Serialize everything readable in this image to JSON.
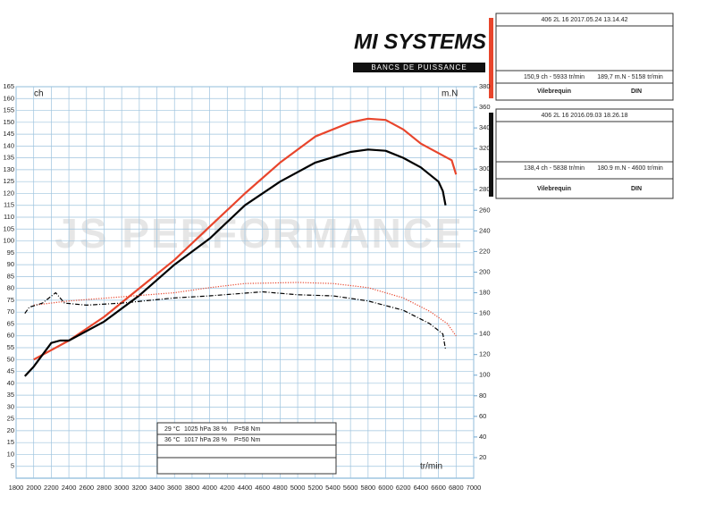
{
  "chart_data": {
    "type": "line",
    "xlim": [
      1800,
      7000
    ],
    "xticks": [
      1800,
      2000,
      2200,
      2400,
      2600,
      2800,
      3000,
      3200,
      3400,
      3600,
      3800,
      4000,
      4200,
      4400,
      4600,
      4800,
      5000,
      5200,
      5400,
      5600,
      5800,
      6000,
      6200,
      6400,
      6600,
      6800,
      7000
    ],
    "ylim": [
      0,
      165
    ],
    "yticks": [
      5,
      10,
      15,
      20,
      25,
      30,
      35,
      40,
      45,
      50,
      55,
      60,
      65,
      70,
      75,
      80,
      85,
      90,
      95,
      100,
      105,
      110,
      115,
      120,
      125,
      130,
      135,
      140,
      145,
      150,
      155,
      160,
      165
    ],
    "y2lim": [
      0,
      380
    ],
    "y2ticks": [
      20,
      40,
      60,
      80,
      100,
      120,
      140,
      160,
      180,
      200,
      220,
      240,
      260,
      280,
      300,
      320,
      340,
      360,
      380
    ],
    "ylabel": "ch",
    "y2label": "m.N",
    "xlabel": "tr/min",
    "grid": true,
    "series": [
      {
        "color": "#e8452c",
        "style": "solid",
        "x": [
          2000,
          2400,
          2800,
          3200,
          3600,
          4000,
          4400,
          4800,
          5200,
          5600,
          5800,
          6000,
          6200,
          6400,
          6600,
          6750,
          6800
        ],
        "values": [
          50,
          58,
          68,
          80,
          92,
          106,
          120,
          133,
          144,
          150,
          151.5,
          151,
          147,
          141,
          137,
          134,
          128
        ]
      },
      {
        "color": "#000000",
        "style": "solid",
        "x": [
          1900,
          2000,
          2200,
          2300,
          2400,
          2800,
          3200,
          3600,
          4000,
          4400,
          4800,
          5200,
          5600,
          5800,
          6000,
          6200,
          6400,
          6600,
          6650,
          6680
        ],
        "values": [
          43,
          47,
          57,
          58,
          58,
          66,
          77,
          90,
          101,
          115,
          125,
          133,
          137.5,
          138.5,
          138,
          135,
          131,
          125,
          121,
          115
        ]
      },
      {
        "color": "#e8452c",
        "style": "dotted",
        "axis": "y2",
        "x": [
          2000,
          2400,
          3000,
          3600,
          4000,
          4400,
          5000,
          5400,
          5800,
          6200,
          6500,
          6700,
          6800
        ],
        "values": [
          168,
          172,
          176,
          180,
          185,
          189,
          190,
          189,
          185,
          175,
          162,
          150,
          138
        ]
      },
      {
        "color": "#000000",
        "style": "dashed",
        "axis": "y2",
        "x": [
          1900,
          1950,
          2100,
          2250,
          2350,
          2600,
          3000,
          3600,
          4000,
          4600,
          5000,
          5400,
          5800,
          6200,
          6500,
          6650,
          6680
        ],
        "values": [
          160,
          166,
          170,
          180,
          170,
          168,
          170,
          175,
          177,
          180.9,
          178,
          177,
          172,
          163,
          150,
          140,
          125
        ]
      }
    ]
  },
  "logo": {
    "title": "MI SYSTEMS",
    "subtitle": "BANCS DE PUISSANCE"
  },
  "watermark": "JS PERFORMANCE",
  "panels": [
    {
      "header": "406 2L 16    2017.05.24 13.14.42",
      "power": "150,9 ch - 5933 tr/min",
      "torque": "189,7 m.N - 5158 tr/min",
      "shaft": "Vilebrequin",
      "norm": "DIN"
    },
    {
      "header": "406 2L 16    2016.09.03 18.26.18",
      "power": "138,4 ch - 5838 tr/min",
      "torque": "180.9 m.N - 4600 tr/min",
      "shaft": "Vilebrequin",
      "norm": "DIN"
    }
  ],
  "conditions": [
    {
      "temp": "29 °C",
      "pressure": "1025 hPa",
      "humidity": "38 %",
      "loss": "P=58 Nm"
    },
    {
      "temp": "36 °C",
      "pressure": "1017 hPa",
      "humidity": "28 %",
      "loss": "P=50 Nm"
    }
  ]
}
